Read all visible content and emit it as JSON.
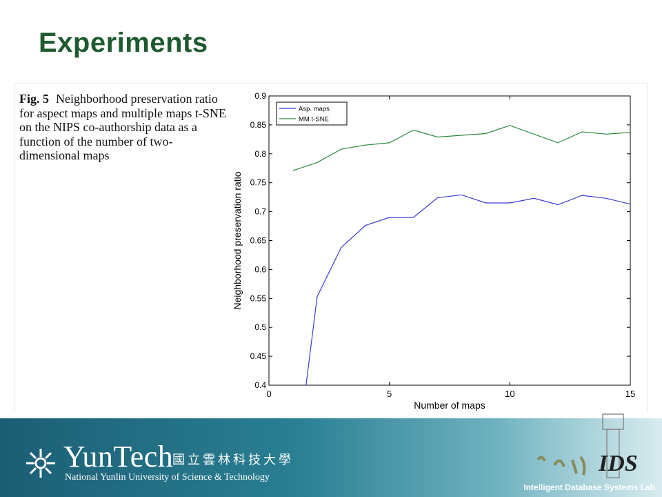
{
  "slide": {
    "title": "Experiments",
    "caption_label": "Fig. 5",
    "caption_text": "Neighborhood preservation ratio for aspect maps and multiple maps t-SNE on the NIPS co-authorship data as a function of the number of two-dimensional maps"
  },
  "footer": {
    "brand_name": "YunTech",
    "brand_chinese": "國立雲林科技大學",
    "brand_english": "National Yunlin University of Science & Technology",
    "lab_name": "Intelligent Database Systems Lab",
    "ids_logo_text": "IDS"
  },
  "chart_data": {
    "type": "line",
    "xlabel": "Number of maps",
    "ylabel": "Neighborhood preservation ratio",
    "xlim": [
      0,
      15
    ],
    "ylim": [
      0.4,
      0.9
    ],
    "xticks": [
      "0",
      "5",
      "10",
      "15"
    ],
    "yticks": [
      "0.4",
      "0.45",
      "0.5",
      "0.55",
      "0.6",
      "0.65",
      "0.7",
      "0.75",
      "0.8",
      "0.85",
      "0.9"
    ],
    "legend_position": "top-left",
    "grid": false,
    "series": [
      {
        "name": "Asp. maps",
        "color": "#3a3ad0",
        "x": [
          1,
          2,
          3,
          4,
          5,
          6,
          7,
          8,
          9,
          10,
          11,
          12,
          13,
          14,
          15
        ],
        "y": [
          0.22,
          0.553,
          0.638,
          0.676,
          0.69,
          0.69,
          0.724,
          0.729,
          0.715,
          0.715,
          0.723,
          0.712,
          0.728,
          0.723,
          0.713
        ]
      },
      {
        "name": "MM t-SNE",
        "color": "#2a8a3a",
        "x": [
          1,
          2,
          3,
          4,
          5,
          6,
          7,
          8,
          9,
          10,
          11,
          12,
          13,
          14,
          15
        ],
        "y": [
          0.771,
          0.785,
          0.808,
          0.815,
          0.819,
          0.841,
          0.829,
          0.832,
          0.835,
          0.849,
          0.834,
          0.819,
          0.838,
          0.834,
          0.837
        ]
      }
    ]
  }
}
